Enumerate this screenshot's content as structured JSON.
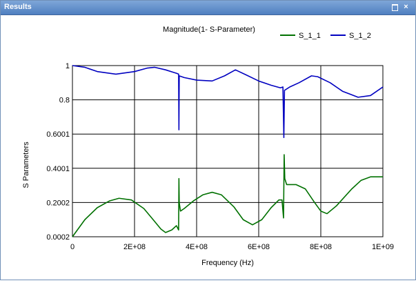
{
  "window": {
    "title": "Results",
    "maximize_symbol": "",
    "close_symbol": "×"
  },
  "chart_data": {
    "type": "line",
    "title": "Magnitude(1- S-Parameter)",
    "xlabel": "Frequency (Hz)",
    "ylabel": "S Parameters",
    "xlim": [
      0,
      1000000000
    ],
    "ylim": [
      0.0002,
      1.0
    ],
    "x_ticks": [
      {
        "value": 0,
        "label": "0"
      },
      {
        "value": 200000000,
        "label": "2E+08"
      },
      {
        "value": 400000000,
        "label": "4E+08"
      },
      {
        "value": 600000000,
        "label": "6E+08"
      },
      {
        "value": 800000000,
        "label": "8E+08"
      },
      {
        "value": 1000000000,
        "label": "1E+09"
      }
    ],
    "y_ticks": [
      {
        "value": 0.0002,
        "label": "0.0002"
      },
      {
        "value": 0.2002,
        "label": "0.2002"
      },
      {
        "value": 0.4001,
        "label": "0.4001"
      },
      {
        "value": 0.6001,
        "label": "0.6001"
      },
      {
        "value": 0.8,
        "label": "0.8"
      },
      {
        "value": 1.0,
        "label": "1"
      }
    ],
    "grid": true,
    "legend_position": "top-right",
    "series": [
      {
        "name": "S_1_1",
        "color": "#007000",
        "points": [
          [
            0,
            0.0002
          ],
          [
            40000000,
            0.1
          ],
          [
            80000000,
            0.17
          ],
          [
            120000000,
            0.21
          ],
          [
            150000000,
            0.225
          ],
          [
            190000000,
            0.215
          ],
          [
            230000000,
            0.165
          ],
          [
            260000000,
            0.1
          ],
          [
            285000000,
            0.045
          ],
          [
            300000000,
            0.025
          ],
          [
            320000000,
            0.04
          ],
          [
            335000000,
            0.065
          ],
          [
            342000000,
            0.04
          ],
          [
            343000000,
            0.34
          ],
          [
            344000000,
            0.2
          ],
          [
            348000000,
            0.15
          ],
          [
            360000000,
            0.165
          ],
          [
            390000000,
            0.21
          ],
          [
            420000000,
            0.245
          ],
          [
            450000000,
            0.26
          ],
          [
            480000000,
            0.245
          ],
          [
            520000000,
            0.175
          ],
          [
            550000000,
            0.1
          ],
          [
            580000000,
            0.07
          ],
          [
            610000000,
            0.1
          ],
          [
            640000000,
            0.17
          ],
          [
            665000000,
            0.215
          ],
          [
            675000000,
            0.215
          ],
          [
            680000000,
            0.11
          ],
          [
            682000000,
            0.48
          ],
          [
            684000000,
            0.34
          ],
          [
            690000000,
            0.305
          ],
          [
            720000000,
            0.305
          ],
          [
            750000000,
            0.28
          ],
          [
            780000000,
            0.2
          ],
          [
            800000000,
            0.15
          ],
          [
            820000000,
            0.135
          ],
          [
            850000000,
            0.18
          ],
          [
            900000000,
            0.28
          ],
          [
            930000000,
            0.33
          ],
          [
            960000000,
            0.35
          ],
          [
            1000000000,
            0.35
          ]
        ]
      },
      {
        "name": "S_1_2",
        "color": "#0000c0",
        "points": [
          [
            0,
            1.0
          ],
          [
            40000000,
            0.99
          ],
          [
            80000000,
            0.965
          ],
          [
            140000000,
            0.95
          ],
          [
            200000000,
            0.965
          ],
          [
            240000000,
            0.985
          ],
          [
            265000000,
            0.99
          ],
          [
            300000000,
            0.975
          ],
          [
            335000000,
            0.955
          ],
          [
            342000000,
            0.95
          ],
          [
            343000000,
            0.625
          ],
          [
            344000000,
            0.94
          ],
          [
            360000000,
            0.93
          ],
          [
            400000000,
            0.915
          ],
          [
            450000000,
            0.91
          ],
          [
            490000000,
            0.94
          ],
          [
            525000000,
            0.975
          ],
          [
            560000000,
            0.945
          ],
          [
            600000000,
            0.91
          ],
          [
            640000000,
            0.885
          ],
          [
            670000000,
            0.87
          ],
          [
            678000000,
            0.875
          ],
          [
            681000000,
            0.58
          ],
          [
            683000000,
            0.855
          ],
          [
            700000000,
            0.875
          ],
          [
            730000000,
            0.9
          ],
          [
            770000000,
            0.94
          ],
          [
            790000000,
            0.935
          ],
          [
            830000000,
            0.9
          ],
          [
            870000000,
            0.85
          ],
          [
            920000000,
            0.815
          ],
          [
            960000000,
            0.825
          ],
          [
            1000000000,
            0.875
          ]
        ]
      }
    ]
  }
}
